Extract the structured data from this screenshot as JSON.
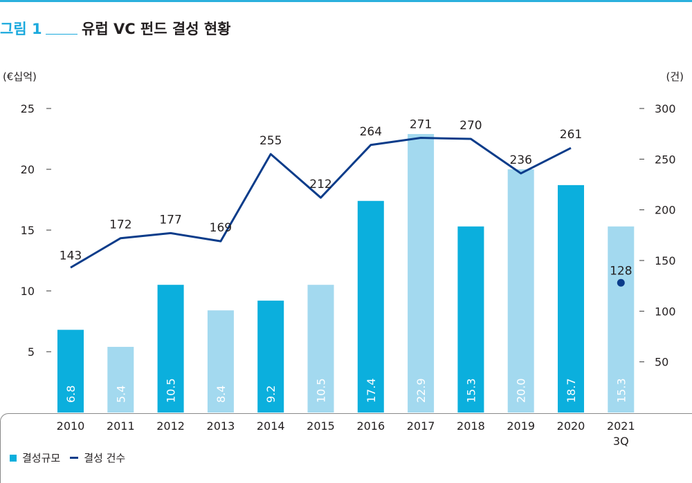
{
  "figure": {
    "number": "그림 1",
    "title": "유럽 VC 펀드 결성 현황"
  },
  "colors": {
    "accent": "#1ba9dd",
    "bar_dark": "#0bafdd",
    "bar_light": "#a3d9ef",
    "line": "#0b3c8a"
  },
  "chart_data": {
    "type": "bar",
    "categories": [
      "2010",
      "2011",
      "2012",
      "2013",
      "2014",
      "2015",
      "2016",
      "2017",
      "2018",
      "2019",
      "2020",
      "2021\n3Q"
    ],
    "series": [
      {
        "name": "결성규모",
        "type": "bar",
        "axis": "left",
        "values": [
          6.8,
          5.4,
          10.5,
          8.4,
          9.2,
          10.5,
          17.4,
          22.9,
          15.3,
          20.0,
          18.7,
          15.3
        ],
        "labels": [
          "6.8",
          "5.4",
          "10.5",
          "8.4",
          "9.2",
          "10.5",
          "17.4",
          "22.9",
          "15.3",
          "20.0",
          "18.7",
          "15.3"
        ],
        "bar_shade": [
          "dark",
          "light",
          "dark",
          "light",
          "dark",
          "light",
          "dark",
          "light",
          "dark",
          "light",
          "dark",
          "light"
        ]
      },
      {
        "name": "결성 건수",
        "type": "line",
        "axis": "right",
        "values": [
          143,
          172,
          177,
          169,
          255,
          212,
          264,
          271,
          270,
          236,
          261,
          128
        ],
        "connected": [
          true,
          true,
          true,
          true,
          true,
          true,
          true,
          true,
          true,
          true,
          true,
          false
        ]
      }
    ],
    "y_left": {
      "unit": "(€십억)",
      "ticks": [
        5,
        10,
        15,
        20,
        25
      ],
      "range": [
        0,
        25
      ]
    },
    "y_right": {
      "unit": "(건)",
      "ticks": [
        50,
        100,
        150,
        200,
        250,
        300
      ],
      "range": [
        0,
        300
      ]
    },
    "legend": {
      "placement": "bottom-left",
      "bar_label": "결성규모",
      "line_label": "결성 건수"
    }
  }
}
